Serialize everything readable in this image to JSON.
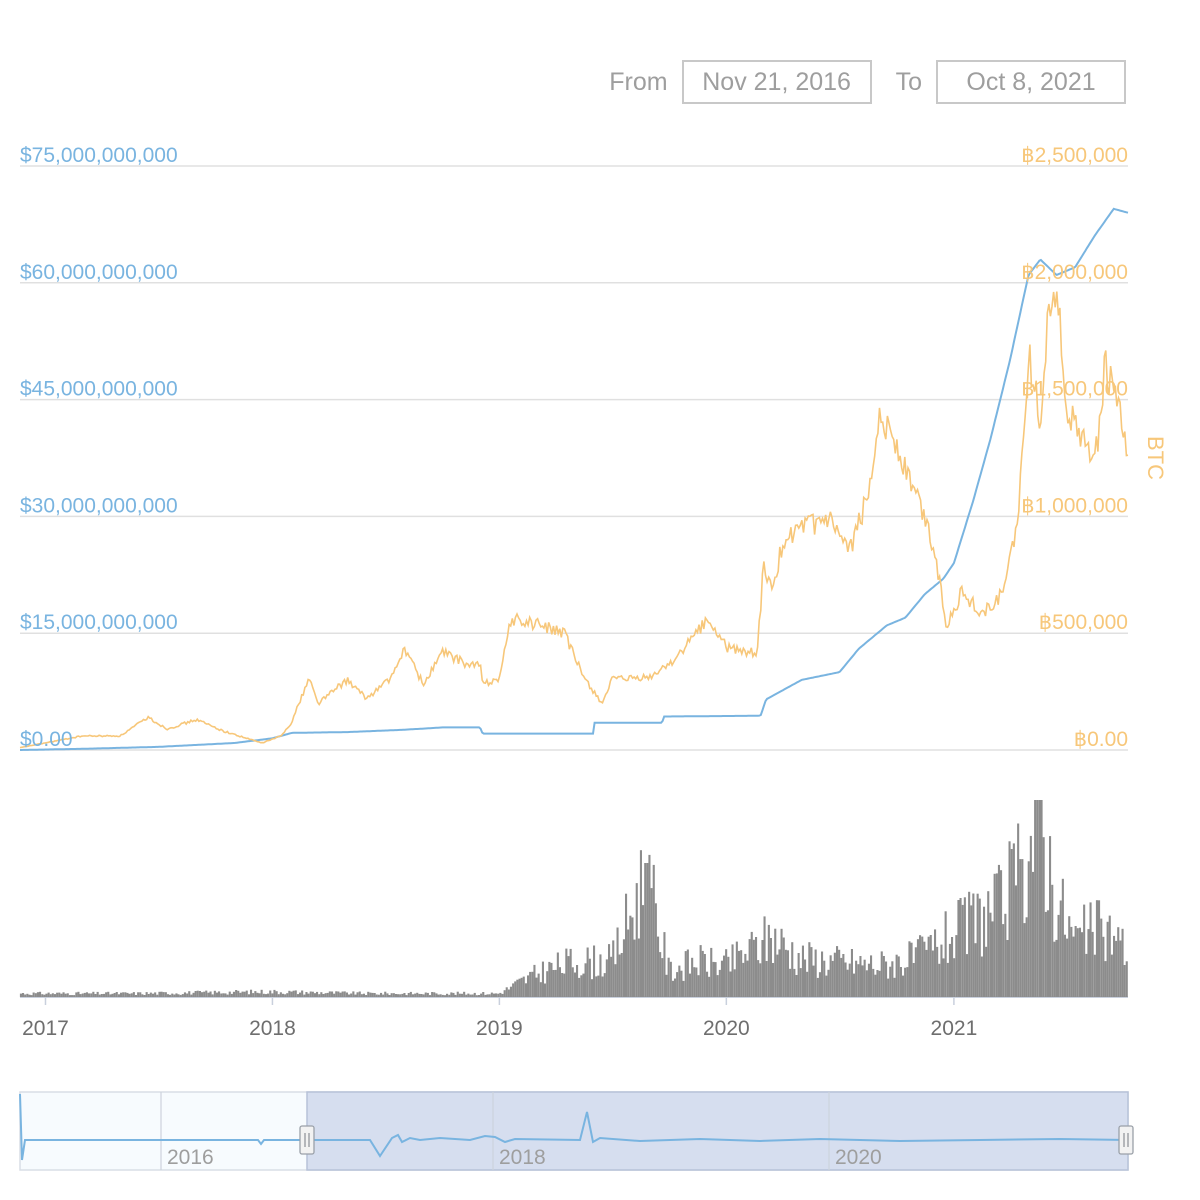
{
  "range_selector": {
    "from_label": "From",
    "from_value": "Nov 21, 2016",
    "to_label": "To",
    "to_value": "Oct 8, 2021"
  },
  "colors": {
    "usd_series": "#79b4e0",
    "btc_series": "#f7c77a",
    "volume": "#8c8c8c",
    "grid": "#e0e0e0",
    "navigator_selection": "#d6deef"
  },
  "chart_data": {
    "type": "line",
    "x_range": [
      "2016-11-21",
      "2021-10-08"
    ],
    "x_ticks": [
      "2017",
      "2018",
      "2019",
      "2020",
      "2021"
    ],
    "y_left": {
      "ticks": [
        "$0.00",
        "$15,000,000,000",
        "$30,000,000,000",
        "$45,000,000,000",
        "$60,000,000,000",
        "$75,000,000,000"
      ],
      "range": [
        0,
        75000000000
      ]
    },
    "y_right": {
      "title": "BTC",
      "ticks": [
        "฿0.00",
        "฿500,000",
        "฿1,000,000",
        "฿1,500,000",
        "฿2,000,000",
        "฿2,500,000"
      ],
      "range": [
        0,
        2500000
      ]
    },
    "grid": true,
    "series": [
      {
        "axis": "left",
        "color": "#79b4e0",
        "points": [
          [
            "2016-11-21",
            0.0
          ],
          [
            "2017-03-01",
            150000000.0
          ],
          [
            "2017-07-01",
            400000000.0
          ],
          [
            "2017-11-01",
            900000000.0
          ],
          [
            "2018-01-01",
            1500000000.0
          ],
          [
            "2018-02-01",
            2200000000.0
          ],
          [
            "2018-05-01",
            2300000000.0
          ],
          [
            "2018-08-01",
            2600000000.0
          ],
          [
            "2018-10-01",
            2900000000.0
          ],
          [
            "2018-12-01",
            2900000000.0
          ],
          [
            "2018-12-05",
            2100000000.0
          ],
          [
            "2019-06-01",
            2100000000.0
          ],
          [
            "2019-06-03",
            3500000000.0
          ],
          [
            "2019-09-20",
            3500000000.0
          ],
          [
            "2019-09-22",
            4300000000.0
          ],
          [
            "2020-02-25",
            4400000000.0
          ],
          [
            "2020-03-05",
            6500000000.0
          ],
          [
            "2020-05-01",
            9000000000.0
          ],
          [
            "2020-07-01",
            10000000000.0
          ],
          [
            "2020-08-01",
            13000000000.0
          ],
          [
            "2020-09-15",
            16000000000.0
          ],
          [
            "2020-10-15",
            17000000000.0
          ],
          [
            "2020-11-15",
            20000000000.0
          ],
          [
            "2020-12-15",
            22000000000.0
          ],
          [
            "2021-01-01",
            24000000000.0
          ],
          [
            "2021-02-01",
            32000000000.0
          ],
          [
            "2021-03-01",
            40000000000.0
          ],
          [
            "2021-04-01",
            50000000000.0
          ],
          [
            "2021-05-01",
            61000000000.0
          ],
          [
            "2021-05-20",
            63000000000.0
          ],
          [
            "2021-06-15",
            61000000000.0
          ],
          [
            "2021-07-15",
            62000000000.0
          ],
          [
            "2021-08-15",
            66000000000.0
          ],
          [
            "2021-09-15",
            69500000000.0
          ],
          [
            "2021-10-08",
            69000000000.0
          ]
        ]
      },
      {
        "axis": "right",
        "color": "#f7c77a",
        "points": [
          [
            "2016-11-21",
            10000
          ],
          [
            "2017-03-01",
            60000
          ],
          [
            "2017-05-01",
            60000
          ],
          [
            "2017-06-15",
            140000
          ],
          [
            "2017-07-15",
            90000
          ],
          [
            "2017-09-01",
            130000
          ],
          [
            "2017-10-15",
            80000
          ],
          [
            "2017-12-15",
            30000
          ],
          [
            "2018-01-15",
            60000
          ],
          [
            "2018-02-01",
            120000
          ],
          [
            "2018-03-01",
            310000
          ],
          [
            "2018-03-15",
            200000
          ],
          [
            "2018-05-01",
            300000
          ],
          [
            "2018-06-01",
            220000
          ],
          [
            "2018-07-15",
            320000
          ],
          [
            "2018-08-01",
            440000
          ],
          [
            "2018-09-01",
            280000
          ],
          [
            "2018-10-01",
            420000
          ],
          [
            "2018-11-15",
            360000
          ],
          [
            "2018-12-01",
            370000
          ],
          [
            "2018-12-05",
            280000
          ],
          [
            "2019-01-01",
            310000
          ],
          [
            "2019-01-20",
            560000
          ],
          [
            "2019-03-01",
            540000
          ],
          [
            "2019-04-15",
            500000
          ],
          [
            "2019-05-15",
            320000
          ],
          [
            "2019-06-15",
            200000
          ],
          [
            "2019-07-01",
            300000
          ],
          [
            "2019-09-01",
            310000
          ],
          [
            "2019-10-15",
            400000
          ],
          [
            "2019-12-01",
            560000
          ],
          [
            "2020-01-01",
            440000
          ],
          [
            "2020-02-01",
            420000
          ],
          [
            "2020-02-20",
            420000
          ],
          [
            "2020-03-01",
            800000
          ],
          [
            "2020-03-15",
            660000
          ],
          [
            "2020-04-01",
            900000
          ],
          [
            "2020-05-15",
            960000
          ],
          [
            "2020-06-15",
            980000
          ],
          [
            "2020-07-15",
            840000
          ],
          [
            "2020-08-15",
            1080000
          ],
          [
            "2020-09-01",
            1420000
          ],
          [
            "2020-09-20",
            1380000
          ],
          [
            "2020-10-15",
            1200000
          ],
          [
            "2020-11-15",
            1000000
          ],
          [
            "2020-12-01",
            850000
          ],
          [
            "2020-12-20",
            540000
          ],
          [
            "2021-01-15",
            680000
          ],
          [
            "2021-02-15",
            580000
          ],
          [
            "2021-03-15",
            650000
          ],
          [
            "2021-04-01",
            800000
          ],
          [
            "2021-04-15",
            1000000
          ],
          [
            "2021-05-01",
            1700000
          ],
          [
            "2021-05-20",
            1420000
          ],
          [
            "2021-06-01",
            1850000
          ],
          [
            "2021-06-15",
            2000000
          ],
          [
            "2021-07-01",
            1480000
          ],
          [
            "2021-07-20",
            1350000
          ],
          [
            "2021-08-01",
            1300000
          ],
          [
            "2021-08-20",
            1280000
          ],
          [
            "2021-09-01",
            1650000
          ],
          [
            "2021-09-20",
            1500000
          ],
          [
            "2021-10-08",
            1250000
          ]
        ]
      },
      {
        "type": "bar",
        "color": "#8c8c8c",
        "points": [
          [
            "2016-11-21",
            0.02
          ],
          [
            "2017-06-01",
            0.02
          ],
          [
            "2018-01-01",
            0.03
          ],
          [
            "2018-06-01",
            0.02
          ],
          [
            "2019-01-01",
            0.02
          ],
          [
            "2019-02-01",
            0.08
          ],
          [
            "2019-03-15",
            0.15
          ],
          [
            "2019-05-01",
            0.2
          ],
          [
            "2019-07-01",
            0.2
          ],
          [
            "2019-08-25",
            0.68
          ],
          [
            "2019-10-01",
            0.15
          ],
          [
            "2019-11-15",
            0.2
          ],
          [
            "2020-01-01",
            0.18
          ],
          [
            "2020-03-15",
            0.34
          ],
          [
            "2020-05-01",
            0.22
          ],
          [
            "2020-07-01",
            0.2
          ],
          [
            "2020-09-01",
            0.18
          ],
          [
            "2020-11-01",
            0.22
          ],
          [
            "2021-01-01",
            0.35
          ],
          [
            "2021-02-15",
            0.45
          ],
          [
            "2021-03-15",
            0.5
          ],
          [
            "2021-04-20",
            0.7
          ],
          [
            "2021-05-20",
            1.0
          ],
          [
            "2021-06-15",
            0.55
          ],
          [
            "2021-07-15",
            0.32
          ],
          [
            "2021-08-15",
            0.38
          ],
          [
            "2021-09-15",
            0.35
          ],
          [
            "2021-10-08",
            0.25
          ]
        ]
      }
    ]
  },
  "navigator": {
    "labels": [
      "2016",
      "2018",
      "2020"
    ],
    "selection": [
      "2016-11-21",
      "2021-10-08"
    ]
  }
}
